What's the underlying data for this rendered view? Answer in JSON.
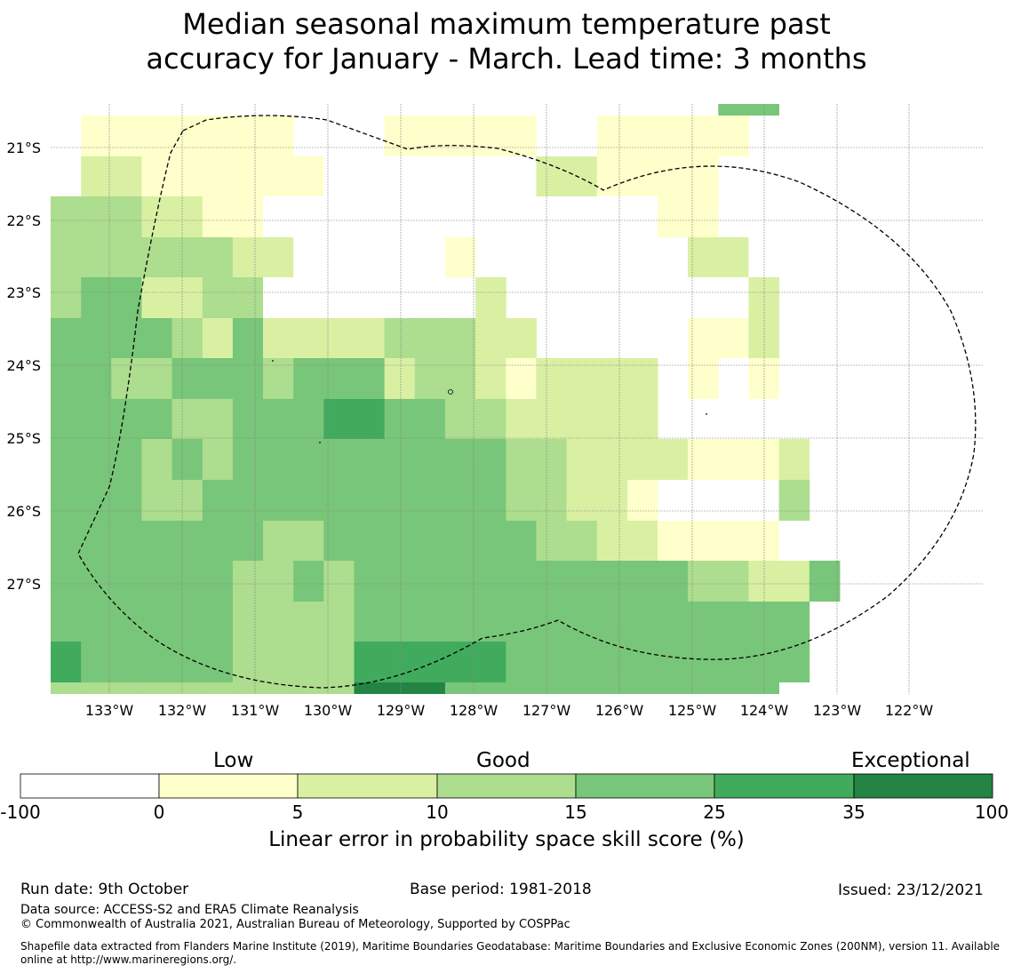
{
  "title_line1": "Median seasonal maximum temperature past",
  "title_line2": "accuracy for January - March. Lead time: 3 months",
  "chart_data": {
    "type": "heatmap",
    "lat_labels": [
      "21°S",
      "22°S",
      "23°S",
      "24°S",
      "25°S",
      "26°S",
      "27°S"
    ],
    "lon_labels": [
      "133°W",
      "132°W",
      "131°W",
      "130°W",
      "129°W",
      "128°W",
      "127°W",
      "126°W",
      "125°W",
      "124°W",
      "123°W",
      "122°W"
    ],
    "legend_categories": [
      "Low",
      "Good",
      "Exceptional"
    ],
    "colorbar_ticks": [
      "-100",
      "0",
      "5",
      "10",
      "15",
      "25",
      "35",
      "100"
    ],
    "colorbar_colors": [
      "#ffffff",
      "#ffffcc",
      "#d9f0a3",
      "#addd8e",
      "#78c679",
      "#41ab5d",
      "#238443"
    ],
    "colorbar_label": "Linear error in probability space skill score (%)",
    "grid_rows_north_to_south": [
      "0______00___00______0044",
      "01111111__011111__11111_",
      "0221111110000___221111__",
      "333221100__00_______11_0",
      "33333322000001_______220",
      "344223300000002________2",
      "4444324222233322_____112",
      "44334443444233212222_1_1",
      "44443344455443322222____",
      "4443434444444443322221112",
      "44433444444444433221____3",
      "444444433444444433221111",
      "44444433434444444444433224",
      "4444443333444444444444444",
      "5444443333555554444444444",
      "333333333366644444444444"
    ]
  },
  "footer": {
    "run_date": "Run date: 9th October",
    "base_period": "Base period: 1981-2018",
    "issued": "Issued: 23/12/2021",
    "data_source": "Data source: ACCESS-S2 and ERA5 Climate Reanalysis",
    "copyright": "© Commonwealth of Australia 2021, Australian Bureau of Meteorology, Supported by COSPPac",
    "shapefile": "Shapefile data extracted from Flanders Marine Institute (2019), Maritime Boundaries Geodatabase: Maritime Boundaries and Exclusive Economic Zones (200NM), version 11. Available online at http://www.marineregions.org/."
  }
}
